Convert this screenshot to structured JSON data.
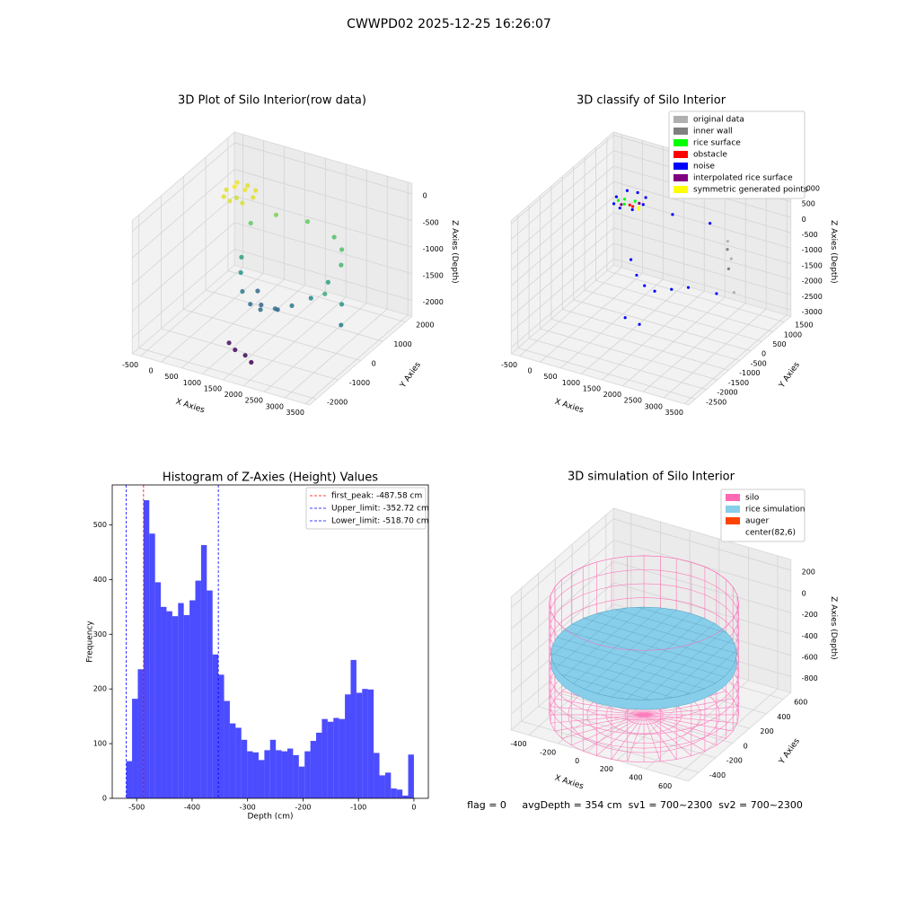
{
  "title": "CWWPD02 2025-12-25 16:26:07",
  "footer": "flag = 0     avgDepth = 354 cm  sv1 = 700~2300  sv2 = 700~2300",
  "chart_data": [
    {
      "type": "scatter3d",
      "title": "3D Plot of Silo Interior(row data)",
      "colormap": "viridis",
      "xlabel": "X Axies",
      "ylabel": "Y Axies",
      "zlabel": "Z Axies (Depth)",
      "xlim": [
        -700,
        3600
      ],
      "ylim": [
        -2300,
        2300
      ],
      "zlim": [
        -2300,
        200
      ],
      "xticks": [
        -500,
        0,
        500,
        1000,
        1500,
        2000,
        2500,
        3000,
        3500
      ],
      "yticks": [
        -2000,
        -1000,
        0,
        1000,
        2000
      ],
      "zticks": [
        -2000,
        -1500,
        -1000,
        -500,
        0
      ],
      "points": [
        [
          -200,
          1000,
          -300
        ],
        [
          -100,
          1300,
          -250
        ],
        [
          100,
          1400,
          -300
        ],
        [
          350,
          1300,
          -300
        ],
        [
          450,
          1000,
          -300
        ],
        [
          350,
          700,
          -320
        ],
        [
          100,
          600,
          -300
        ],
        [
          -100,
          700,
          -300
        ],
        [
          0,
          1000,
          -200
        ],
        [
          200,
          1100,
          -250
        ],
        [
          100,
          900,
          -350
        ],
        [
          600,
          200,
          -1100
        ],
        [
          800,
          -200,
          -1200
        ],
        [
          1000,
          -500,
          -1400
        ],
        [
          1300,
          -700,
          -1500
        ],
        [
          1600,
          -800,
          -1500
        ],
        [
          1900,
          -700,
          -1450
        ],
        [
          2200,
          -500,
          -1400
        ],
        [
          2500,
          -200,
          -1300
        ],
        [
          2700,
          200,
          -1100
        ],
        [
          2800,
          600,
          -900
        ],
        [
          2600,
          1000,
          -800
        ],
        [
          1400,
          -400,
          -1600
        ],
        [
          1800,
          -400,
          -1600
        ],
        [
          1100,
          0,
          -1550
        ],
        [
          500,
          800,
          -700
        ],
        [
          900,
          1200,
          -600
        ],
        [
          1500,
          1500,
          -700
        ],
        [
          2200,
          1400,
          -800
        ],
        [
          3000,
          -500,
          -1000
        ],
        [
          3300,
          -300,
          -1200
        ],
        [
          3500,
          -700,
          -1400
        ],
        [
          1200,
          -1200,
          -2200
        ],
        [
          1500,
          -1300,
          -2200
        ],
        [
          1700,
          -1400,
          -2250
        ],
        [
          1000,
          -1100,
          -2150
        ]
      ]
    },
    {
      "type": "scatter3d",
      "title": "3D classify of Silo Interior",
      "xlabel": "X Axies",
      "ylabel": "Y Axies",
      "zlabel": "Z Axies (Depth)",
      "xlim": [
        -700,
        3600
      ],
      "ylim": [
        -2800,
        1800
      ],
      "zlim": [
        -3200,
        1100
      ],
      "xticks": [
        -500,
        0,
        500,
        1000,
        1500,
        2000,
        2500,
        3000,
        3500
      ],
      "yticks": [
        -2500,
        -2000,
        -1500,
        -1000,
        -500,
        0,
        500,
        1000,
        1500
      ],
      "zticks": [
        -3000,
        -2500,
        -2000,
        -1500,
        -1000,
        -500,
        0,
        500,
        1000
      ],
      "series": [
        {
          "name": "original data",
          "color": "#b0b0b0",
          "points": [
            [
              2800,
              600,
              -900
            ],
            [
              2500,
              1000,
              -700
            ],
            [
              3300,
              -200,
              -1300
            ]
          ]
        },
        {
          "name": "inner wall",
          "color": "#808080",
          "points": [
            [
              2600,
              800,
              -800
            ],
            [
              2900,
              300,
              -1000
            ]
          ]
        },
        {
          "name": "rice surface",
          "color": "#00ff00",
          "points": [
            [
              0,
              1000,
              -300
            ],
            [
              200,
              1100,
              -350
            ],
            [
              -100,
              900,
              -320
            ],
            [
              100,
              800,
              -300
            ]
          ]
        },
        {
          "name": "obstacle",
          "color": "#ff0000",
          "points": [
            [
              150,
              950,
              -400
            ],
            [
              250,
              900,
              -380
            ]
          ]
        },
        {
          "name": "noise",
          "color": "#0000ff",
          "points": [
            [
              -200,
              1000,
              -300
            ],
            [
              -100,
              1300,
              -250
            ],
            [
              100,
              1400,
              -300
            ],
            [
              350,
              1300,
              -300
            ],
            [
              450,
              1000,
              -300
            ],
            [
              350,
              700,
              -320
            ],
            [
              100,
              600,
              -300
            ],
            [
              -100,
              700,
              -300
            ],
            [
              800,
              -200,
              -1200
            ],
            [
              1100,
              -500,
              -1400
            ],
            [
              1400,
              -700,
              -1500
            ],
            [
              1700,
              -800,
              -1500
            ],
            [
              2000,
              -600,
              -1450
            ],
            [
              2300,
              -400,
              -1400
            ],
            [
              1200,
              -1200,
              -2300
            ],
            [
              1600,
              -1300,
              -2300
            ],
            [
              3200,
              -800,
              -1000
            ],
            [
              1000,
              1300,
              -600
            ],
            [
              1800,
              1500,
              -700
            ]
          ]
        },
        {
          "name": "interpolated rice surface",
          "color": "#800080",
          "points": [
            [
              300,
              1100,
              -380
            ],
            [
              0,
              850,
              -380
            ]
          ]
        },
        {
          "name": "symmetric generated points",
          "color": "#ffff00",
          "points": [
            [
              400,
              900,
              -350
            ],
            [
              450,
              800,
              -330
            ]
          ]
        }
      ]
    },
    {
      "type": "histogram",
      "title": "Histogram of Z-Axies (Height) Values",
      "xlabel": "Depth (cm)",
      "ylabel": "Frequency",
      "color": "#0000ff",
      "alpha": 0.7,
      "xlim": [
        -544,
        26
      ],
      "ylim": [
        0,
        573
      ],
      "xticks": [
        -500,
        -400,
        -300,
        -200,
        -100,
        0
      ],
      "yticks": [
        0,
        100,
        200,
        300,
        400,
        500
      ],
      "bins": [
        -518.7,
        -508.3,
        -497.9,
        -487.6,
        -477.2,
        -466.8,
        -456.5,
        -446.1,
        -435.7,
        -425.3,
        -415.0,
        -404.6,
        -394.2,
        -383.8,
        -373.5,
        -363.1,
        -352.7,
        -342.3,
        -332.0,
        -321.6,
        -311.2,
        -300.8,
        -290.5,
        -280.1,
        -269.7,
        -259.4,
        -249.0,
        -238.6,
        -228.2,
        -217.9,
        -207.5,
        -197.1,
        -186.7,
        -176.4,
        -166.0,
        -155.6,
        -145.2,
        -134.9,
        -124.5,
        -114.1,
        -103.7,
        -93.4,
        -83.0,
        -72.6,
        -62.2,
        -51.9,
        -41.5,
        -31.1,
        -20.7,
        -10.4,
        0
      ],
      "counts": [
        68,
        182,
        236,
        545,
        484,
        395,
        350,
        342,
        333,
        357,
        335,
        362,
        398,
        463,
        380,
        263,
        226,
        178,
        137,
        129,
        107,
        86,
        84,
        70,
        88,
        107,
        88,
        86,
        91,
        79,
        58,
        86,
        105,
        120,
        145,
        140,
        147,
        145,
        190,
        253,
        193,
        200,
        199,
        83,
        42,
        47,
        18,
        16,
        5,
        80
      ],
      "vlines": [
        {
          "label": "first_peak: -487.58 cm",
          "value": -487.58,
          "color": "#ff0000"
        },
        {
          "label": "Upper_limit: -352.72 cm",
          "value": -352.72,
          "color": "#0000ff"
        },
        {
          "label": "Lower_limit: -518.70 cm",
          "value": -518.7,
          "color": "#0000ff"
        }
      ]
    },
    {
      "type": "silo3d",
      "title": "3D simulation of Silo Interior",
      "xlabel": "X Axies",
      "ylabel": "Y Axies",
      "zlabel": "Z Axies (Depth)",
      "xlim": [
        -520,
        690
      ],
      "ylim": [
        -520,
        690
      ],
      "zlim": [
        -950,
        300
      ],
      "xticks": [
        -400,
        -200,
        0,
        200,
        400,
        600
      ],
      "yticks": [
        -400,
        -200,
        0,
        200,
        400,
        600
      ],
      "zticks": [
        -800,
        -600,
        -400,
        -200,
        0,
        200
      ],
      "center": [
        82,
        6
      ],
      "silo_radius": 560,
      "silo_z": [
        -930,
        120
      ],
      "surface_z": -354,
      "legend": [
        {
          "name": "silo",
          "color": "#ff69b4"
        },
        {
          "name": "rice simulation",
          "color": "#87ceeb"
        },
        {
          "name": "auger",
          "color": "#ff4500"
        },
        {
          "name": "center(82,6)",
          "color": "#ffffff"
        }
      ]
    }
  ]
}
